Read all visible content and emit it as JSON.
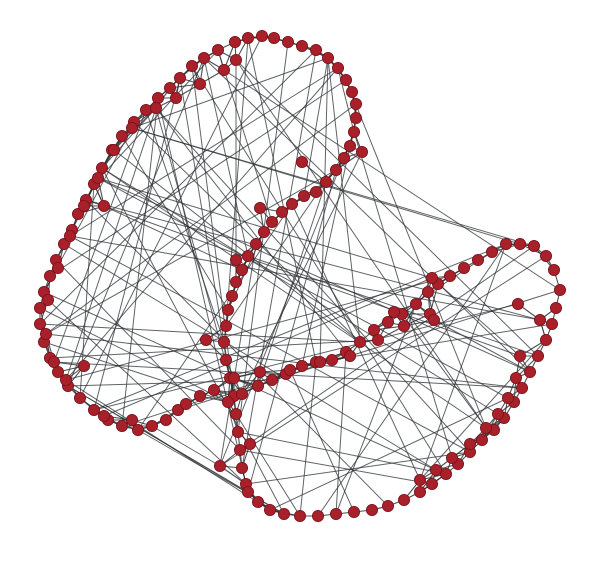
{
  "graph": {
    "type": "network",
    "node_color": "#a8202a",
    "node_stroke": "#7a1019",
    "edge_color": "#2b3033",
    "labels": []
  }
}
